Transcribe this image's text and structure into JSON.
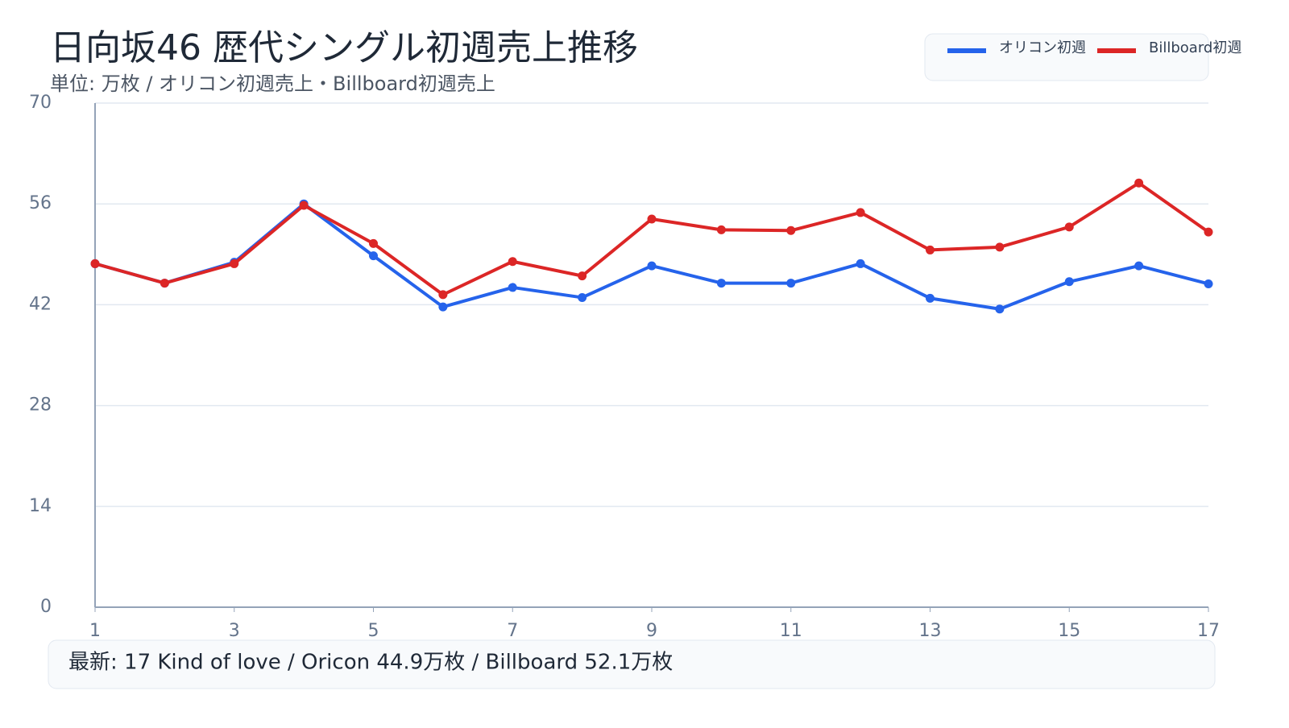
{
  "chart_data": {
    "type": "line",
    "title": "日向坂46 歴代シングル初週売上推移",
    "subtitle": "単位: 万枚 / オリコン初週売上・Billboard初週売上",
    "x": [
      1,
      2,
      3,
      4,
      5,
      6,
      7,
      8,
      9,
      10,
      11,
      12,
      13,
      14,
      15,
      16,
      17
    ],
    "xlim": [
      1,
      17
    ],
    "xticks": [
      1,
      3,
      5,
      7,
      9,
      11,
      13,
      15,
      17
    ],
    "ylim": [
      0,
      70
    ],
    "yticks": [
      0,
      14,
      28,
      42,
      56,
      70
    ],
    "grid": true,
    "legend": "top-right",
    "series": [
      {
        "name": "オリコン初週",
        "color": "#2563eb",
        "values": [
          47.7,
          45.0,
          47.9,
          56.0,
          48.8,
          41.7,
          44.4,
          43.0,
          47.4,
          45.0,
          45.0,
          47.7,
          42.9,
          41.4,
          45.2,
          47.4,
          44.9
        ]
      },
      {
        "name": "Billboard初週",
        "color": "#dc2626",
        "values": [
          47.7,
          45.0,
          47.7,
          55.8,
          50.5,
          43.4,
          48.0,
          46.0,
          53.9,
          52.4,
          52.3,
          54.8,
          49.6,
          50.0,
          52.8,
          58.9,
          52.1
        ]
      }
    ]
  },
  "footer": {
    "text": "最新: 17 Kind of love / Oricon 44.9万枚 / Billboard 52.1万枚"
  }
}
